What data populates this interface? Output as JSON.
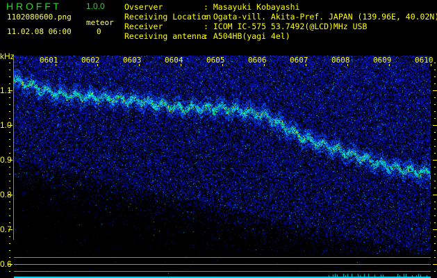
{
  "app": {
    "title": "H R O F F T",
    "version": "1.0.0"
  },
  "file": {
    "name": "1102080600.png",
    "datetime": "11.02.08 06:00"
  },
  "meteor": {
    "label": "meteor",
    "count": "0"
  },
  "info": [
    {
      "label": "Ovserver",
      "value": ": Masayuki Kobayashi"
    },
    {
      "label": "Receiving Location",
      "value": ": Ogata-vill. Akita-Pref. JAPAN (139.96E, 40.02N)"
    },
    {
      "label": "Receiver",
      "value": ": ICOM IC-575 53.7492(@LCD)MHz USB"
    },
    {
      "label": "Receiving antenna",
      "value": ": A504HB(yagi 4el)"
    }
  ],
  "chart_data": {
    "type": "heatmap",
    "ylabel": "kHz",
    "ylim": [
      0.59,
      1.2
    ],
    "y_ticks": [
      "1.1",
      "1.0",
      "0.9",
      "0.8",
      "0.7",
      "0.6"
    ],
    "x_ticks": [
      "0601",
      "0602",
      "0603",
      "0604",
      "0605",
      "0606",
      "0607",
      "0608",
      "0609",
      "0610"
    ],
    "xlim_minutes": [
      "0600",
      "0610"
    ],
    "signal_trace": {
      "time": [
        "0600",
        "0601",
        "0602",
        "0603",
        "0604",
        "0605",
        "0606",
        "0607",
        "0608",
        "0609",
        "0610"
      ],
      "khz": [
        1.13,
        1.09,
        1.08,
        1.07,
        1.05,
        1.05,
        1.03,
        0.96,
        0.92,
        0.88,
        0.86
      ]
    },
    "colors": {
      "background": "#000000",
      "noise": "#0a1a9a",
      "signal": "#00ffff",
      "peak": "#ffff00",
      "axis": "#ffff00"
    }
  }
}
